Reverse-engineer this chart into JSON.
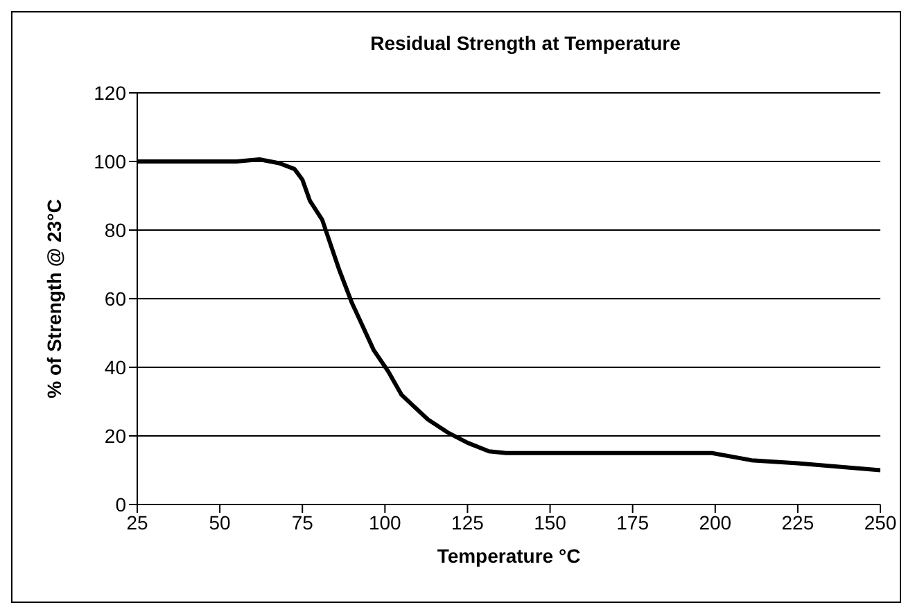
{
  "chart_data": {
    "type": "line",
    "title": "Residual  Strength at Temperature",
    "xlabel": "Temperature °C",
    "ylabel": "% of  Strength @ 23°C",
    "x": [
      25,
      55,
      62,
      68,
      72.6,
      75,
      77.3,
      81,
      86.2,
      89.9,
      96.6,
      101,
      105,
      113,
      119,
      125,
      131.5,
      136.7,
      150,
      175,
      199,
      211,
      225,
      250
    ],
    "series": [
      {
        "color": "#000000",
        "values": [
          100,
          100,
          100.6,
          99.5,
          97.8,
          94.7,
          88.5,
          83,
          68.3,
          59,
          45,
          38.8,
          32,
          24.8,
          21,
          18,
          15.5,
          15,
          15,
          15,
          15,
          12.9,
          12,
          10
        ]
      }
    ],
    "xlim": [
      25,
      250
    ],
    "xticks": [
      25,
      50,
      75,
      100,
      125,
      150,
      175,
      200,
      225,
      250
    ],
    "ylim": [
      0,
      120
    ],
    "yticks": [
      0,
      20,
      40,
      60,
      80,
      100,
      120
    ],
    "grid": "y",
    "legend": false,
    "marker": "none",
    "line_style": "solid"
  }
}
